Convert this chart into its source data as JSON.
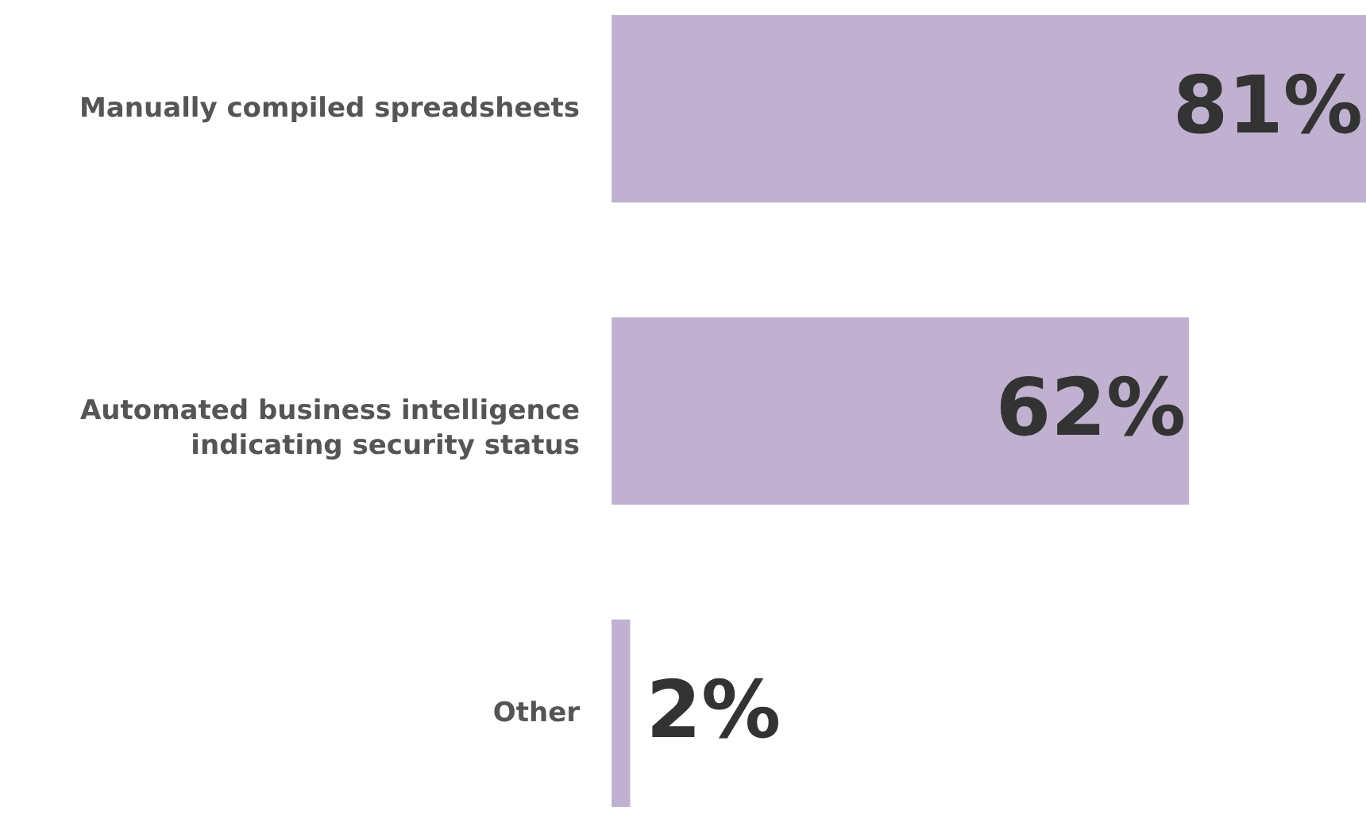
{
  "chart_data": {
    "type": "bar",
    "orientation": "horizontal",
    "categories": [
      "Manually compiled spreadsheets",
      "Automated business intelligence indicating security status",
      "Other"
    ],
    "values": [
      81,
      62,
      2
    ],
    "value_labels": [
      "81%",
      "62%",
      "2%"
    ],
    "color": "#c0b1d1",
    "grid": false
  }
}
